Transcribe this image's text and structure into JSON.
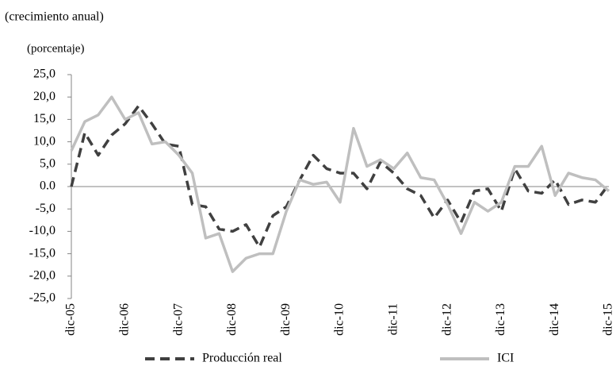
{
  "chart_data": {
    "type": "line",
    "title": "(crecimiento anual)",
    "subtitle": "(porcentaje)",
    "categories": [
      "dic-05",
      null,
      null,
      null,
      "dic-06",
      null,
      null,
      null,
      "dic-07",
      null,
      null,
      null,
      "dic-08",
      null,
      null,
      null,
      "dic-09",
      null,
      null,
      null,
      "dic-10",
      null,
      null,
      null,
      "dic-11",
      null,
      null,
      null,
      "dic-12",
      null,
      null,
      null,
      "dic-13",
      null,
      null,
      null,
      "dic-14",
      null,
      null,
      null,
      "dic-15"
    ],
    "series": [
      {
        "name": "Producción real",
        "color": "#404040",
        "style": "dashed",
        "values": [
          0,
          12,
          7,
          11.5,
          14,
          18,
          14,
          9.5,
          9,
          -4,
          -4.5,
          -9.5,
          -10,
          -8.5,
          -13.5,
          -6.5,
          -4.5,
          1.5,
          7,
          4,
          3,
          3,
          -0.5,
          5.5,
          3,
          -0.5,
          -2,
          -7,
          -3,
          -8,
          -1,
          -0.5,
          -5.5,
          4,
          -1,
          -1.5,
          1.5,
          -4,
          -3,
          -3.5,
          0.5
        ]
      },
      {
        "name": "ICI",
        "color": "#bfbfbf",
        "style": "solid",
        "values": [
          8,
          14.5,
          16,
          20,
          15,
          16.5,
          9.5,
          10,
          7,
          3,
          -11.5,
          -10.5,
          -19,
          -16,
          -15,
          -15,
          -5.5,
          1.5,
          0.5,
          1,
          -3.5,
          13,
          4.5,
          6,
          4,
          7.5,
          2,
          1.5,
          -4,
          -10.5,
          -3.5,
          -5.5,
          -3.5,
          4.5,
          4.5,
          9,
          -2,
          3,
          2,
          1.5,
          -1
        ]
      }
    ],
    "ylim": [
      -25,
      25
    ],
    "yticks": [
      {
        "value": 25,
        "label": "25,0"
      },
      {
        "value": 20,
        "label": "20,0"
      },
      {
        "value": 15,
        "label": "15,0"
      },
      {
        "value": 10,
        "label": "10,0"
      },
      {
        "value": 5,
        "label": "5,0"
      },
      {
        "value": 0,
        "label": "0.0"
      },
      {
        "value": -5,
        "label": "-5,0"
      },
      {
        "value": -10,
        "label": "-10,0"
      },
      {
        "value": -15,
        "label": "-15,0"
      },
      {
        "value": -20,
        "label": "-20,0"
      },
      {
        "value": -25,
        "label": "-25,0"
      }
    ],
    "grid": false,
    "legend": "bottom"
  }
}
